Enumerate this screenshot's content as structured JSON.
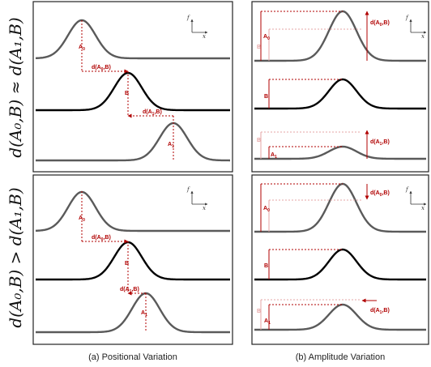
{
  "side_labels": {
    "top": "d(A₀,B) ≈ d(A₁,B)",
    "bottom": "d(A₀,B) > d(A₁,B)"
  },
  "captions": {
    "left": "(a) Positional Variation",
    "right": "(b) Amplitude Variation"
  },
  "axes_icon": {
    "y": "f",
    "x": "x"
  },
  "labels": {
    "A0": "A",
    "A0_sub": "0",
    "A1": "A",
    "A1_sub": "1",
    "B": "B",
    "d_A0_B": "d(A",
    "d_A0_B_sub": "0",
    "d_A0_B_end": ",B)",
    "d_A1_B": "d(A",
    "d_A1_B_sub": "1",
    "d_A1_B_end": ",B)"
  },
  "colors": {
    "curve_gray": "#5a5a5a",
    "curve_black": "#000000",
    "accent_red": "#b00000",
    "faint_red": "#e6a6a6"
  }
}
